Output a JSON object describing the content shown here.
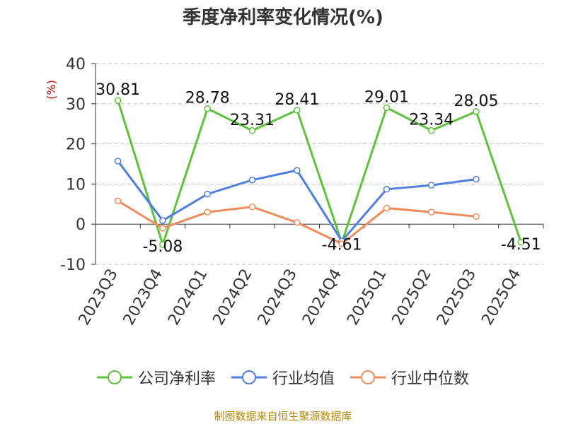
{
  "chart_data": {
    "type": "line",
    "title": "季度净利率变化情况(%)",
    "ylabel": "(%)",
    "ylim": [
      -10,
      40
    ],
    "yticks": [
      -10,
      0,
      10,
      20,
      30,
      40
    ],
    "grid": true,
    "legend_position": "bottom",
    "categories": [
      "2023Q3",
      "2023Q4",
      "2024Q1",
      "2024Q2",
      "2024Q3",
      "2024Q4",
      "2025Q1",
      "2025Q2",
      "2025Q3",
      "2025Q4"
    ],
    "series": [
      {
        "name": "公司净利率",
        "color": "#5cc33a",
        "labeled": true,
        "values": [
          30.81,
          -5.08,
          28.78,
          23.31,
          28.41,
          -4.61,
          29.01,
          23.34,
          28.05,
          -4.51
        ],
        "labels": [
          "30.81",
          "-5.08",
          "28.78",
          "23.31",
          "28.41",
          "-4.61",
          "29.01",
          "23.34",
          "28.05",
          "-4.51"
        ]
      },
      {
        "name": "行业均值",
        "color": "#4e7fe0",
        "labeled": false,
        "values": [
          15.7,
          0.9,
          7.5,
          11.0,
          13.4,
          -4.2,
          8.7,
          9.7,
          11.2,
          null
        ]
      },
      {
        "name": "行业中位数",
        "color": "#f28b5a",
        "labeled": false,
        "values": [
          5.8,
          -1.0,
          3.0,
          4.3,
          0.4,
          -4.9,
          4.0,
          3.0,
          1.9,
          null
        ]
      }
    ]
  },
  "source_note": "制图数据来自恒生聚源数据库"
}
